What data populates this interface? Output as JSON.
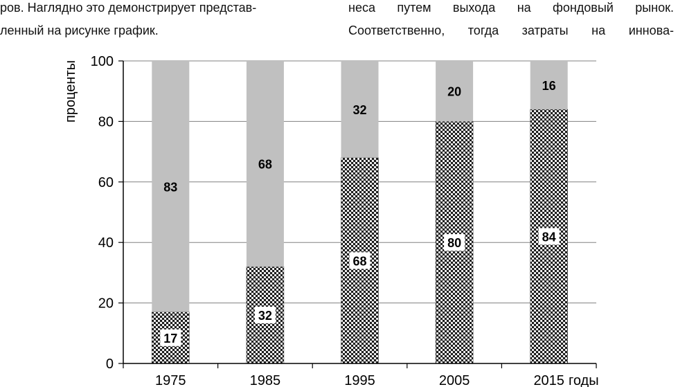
{
  "text": {
    "left_line_1": "ров. Наглядно это демонстрирует представ-",
    "left_line_2": "ленный на рисунке график.",
    "right_line_1": "неса путем выхода на фондовый рынок.",
    "right_line_2": "Соответственно, тогда затраты на иннова-"
  },
  "colors": {
    "top_segment": "#c0c0c0",
    "bottom_pattern_bg": "#1a1a1a",
    "bottom_pattern_dot": "#ffffff",
    "grid": "#808080"
  },
  "chart_data": {
    "type": "bar",
    "stacked": true,
    "percent": true,
    "categories": [
      "1975",
      "1985",
      "1995",
      "2005",
      "2015"
    ],
    "series": [
      {
        "values": [
          17,
          32,
          68,
          80,
          84
        ],
        "pattern": "dotted-dark"
      },
      {
        "values": [
          83,
          68,
          32,
          20,
          16
        ],
        "pattern": "solid-gray"
      }
    ],
    "xlabel": "годы",
    "ylabel": "проценты",
    "ylim": [
      0,
      100
    ],
    "yticks": [
      0,
      20,
      40,
      60,
      80,
      100
    ],
    "grid": true
  }
}
